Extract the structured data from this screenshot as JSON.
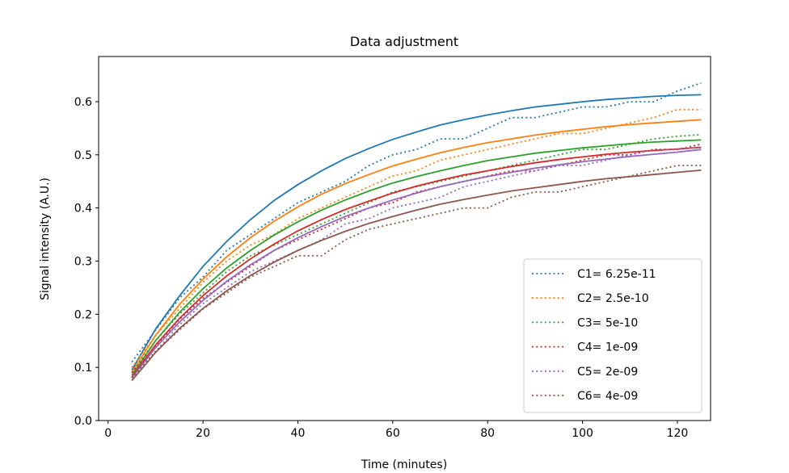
{
  "chart_data": {
    "type": "line",
    "title": "Data adjustment",
    "xlabel": "Time (minutes)",
    "ylabel": "Signal intensity (A.U.)",
    "xlim": [
      -2,
      127
    ],
    "ylim": [
      0,
      0.685
    ],
    "xticks": [
      0,
      20,
      40,
      60,
      80,
      100,
      120
    ],
    "xtick_labels": [
      "0",
      "20",
      "40",
      "60",
      "80",
      "100",
      "120"
    ],
    "yticks": [
      0.0,
      0.1,
      0.2,
      0.3,
      0.4,
      0.5,
      0.6
    ],
    "ytick_labels": [
      "0.0",
      "0.1",
      "0.2",
      "0.3",
      "0.4",
      "0.5",
      "0.6"
    ],
    "grid": false,
    "legend_position": "lower right",
    "x": [
      5,
      10,
      15,
      20,
      25,
      30,
      35,
      40,
      45,
      50,
      55,
      60,
      65,
      70,
      75,
      80,
      85,
      90,
      95,
      100,
      105,
      110,
      115,
      120,
      125
    ],
    "series": [
      {
        "name": "C1= 6.25e-11",
        "color": "#1f77b4",
        "measured": [
          0.11,
          0.17,
          0.23,
          0.27,
          0.32,
          0.35,
          0.38,
          0.41,
          0.43,
          0.45,
          0.48,
          0.5,
          0.51,
          0.53,
          0.53,
          0.55,
          0.57,
          0.57,
          0.58,
          0.59,
          0.59,
          0.6,
          0.6,
          0.62,
          0.635
        ],
        "fitted": [
          0.095,
          0.172,
          0.234,
          0.29,
          0.337,
          0.378,
          0.414,
          0.444,
          0.47,
          0.493,
          0.512,
          0.529,
          0.543,
          0.556,
          0.566,
          0.575,
          0.583,
          0.59,
          0.595,
          0.6,
          0.604,
          0.607,
          0.61,
          0.612,
          0.613
        ]
      },
      {
        "name": "C2= 2.5e-10",
        "color": "#ff7f0e",
        "measured": [
          0.1,
          0.16,
          0.21,
          0.26,
          0.3,
          0.33,
          0.35,
          0.38,
          0.4,
          0.42,
          0.44,
          0.46,
          0.47,
          0.49,
          0.5,
          0.51,
          0.52,
          0.53,
          0.54,
          0.54,
          0.55,
          0.56,
          0.57,
          0.585,
          0.585
        ],
        "fitted": [
          0.09,
          0.16,
          0.218,
          0.266,
          0.308,
          0.344,
          0.375,
          0.402,
          0.426,
          0.446,
          0.463,
          0.479,
          0.492,
          0.504,
          0.514,
          0.523,
          0.53,
          0.537,
          0.543,
          0.548,
          0.553,
          0.557,
          0.56,
          0.563,
          0.566
        ]
      },
      {
        "name": "C3= 5e-10",
        "color": "#2ca02c",
        "measured": [
          0.09,
          0.15,
          0.2,
          0.24,
          0.28,
          0.31,
          0.33,
          0.35,
          0.37,
          0.39,
          0.41,
          0.43,
          0.44,
          0.45,
          0.46,
          0.47,
          0.48,
          0.49,
          0.5,
          0.51,
          0.51,
          0.52,
          0.53,
          0.535,
          0.538
        ],
        "fitted": [
          0.085,
          0.15,
          0.203,
          0.248,
          0.287,
          0.32,
          0.349,
          0.374,
          0.396,
          0.415,
          0.432,
          0.447,
          0.459,
          0.47,
          0.48,
          0.489,
          0.496,
          0.503,
          0.508,
          0.513,
          0.517,
          0.521,
          0.524,
          0.526,
          0.528
        ]
      },
      {
        "name": "C4= 1e-09",
        "color": "#d62728",
        "measured": [
          0.09,
          0.14,
          0.19,
          0.23,
          0.26,
          0.29,
          0.32,
          0.34,
          0.36,
          0.38,
          0.4,
          0.41,
          0.43,
          0.44,
          0.45,
          0.46,
          0.47,
          0.47,
          0.48,
          0.49,
          0.5,
          0.5,
          0.51,
          0.51,
          0.52
        ],
        "fitted": [
          0.082,
          0.142,
          0.192,
          0.235,
          0.272,
          0.304,
          0.332,
          0.357,
          0.378,
          0.397,
          0.413,
          0.428,
          0.441,
          0.452,
          0.462,
          0.47,
          0.478,
          0.485,
          0.491,
          0.496,
          0.501,
          0.505,
          0.508,
          0.511,
          0.514
        ]
      },
      {
        "name": "C5= 2e-09",
        "color": "#9467bd",
        "measured": [
          0.08,
          0.13,
          0.18,
          0.22,
          0.25,
          0.28,
          0.3,
          0.32,
          0.34,
          0.37,
          0.38,
          0.4,
          0.41,
          0.42,
          0.44,
          0.45,
          0.46,
          0.47,
          0.48,
          0.48,
          0.49,
          0.5,
          0.51,
          0.51,
          0.515
        ],
        "fitted": [
          0.08,
          0.137,
          0.185,
          0.226,
          0.262,
          0.293,
          0.32,
          0.344,
          0.365,
          0.384,
          0.4,
          0.415,
          0.428,
          0.44,
          0.45,
          0.459,
          0.467,
          0.475,
          0.481,
          0.487,
          0.492,
          0.497,
          0.501,
          0.505,
          0.51
        ]
      },
      {
        "name": "C6= 4e-09",
        "color": "#8c564b",
        "measured": [
          0.08,
          0.13,
          0.17,
          0.21,
          0.24,
          0.27,
          0.29,
          0.31,
          0.31,
          0.34,
          0.36,
          0.37,
          0.38,
          0.39,
          0.4,
          0.4,
          0.42,
          0.43,
          0.43,
          0.44,
          0.45,
          0.46,
          0.47,
          0.48,
          0.48
        ],
        "fitted": [
          0.075,
          0.128,
          0.173,
          0.211,
          0.244,
          0.273,
          0.298,
          0.32,
          0.339,
          0.356,
          0.371,
          0.384,
          0.396,
          0.407,
          0.416,
          0.424,
          0.432,
          0.438,
          0.444,
          0.45,
          0.455,
          0.459,
          0.463,
          0.467,
          0.471
        ]
      }
    ]
  }
}
